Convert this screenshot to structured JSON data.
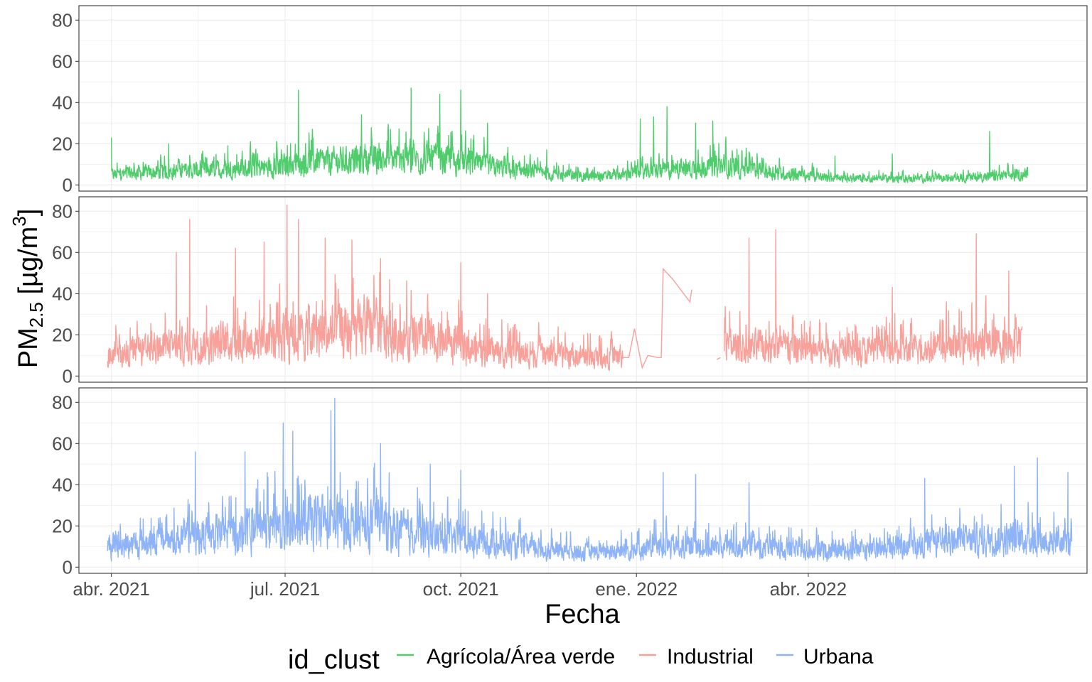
{
  "chart_data": {
    "type": "line",
    "xlabel": "Fecha",
    "ylabel": "PM",
    "ylabel_sub": "2.5",
    "ylabel_unit_open": " [µg/m",
    "ylabel_unit_sup": "3",
    "ylabel_unit_close": "]",
    "x_range": [
      "2021-03-15",
      "2022-08-25"
    ],
    "x_ticks": [
      {
        "date": "2021-04-01",
        "label": "abr. 2021"
      },
      {
        "date": "2021-07-01",
        "label": "jul. 2021"
      },
      {
        "date": "2021-10-01",
        "label": "oct. 2021"
      },
      {
        "date": "2022-01-01",
        "label": "ene. 2022"
      },
      {
        "date": "2022-04-01",
        "label": "abr. 2022"
      }
    ],
    "ylim": [
      -3,
      87
    ],
    "y_ticks": [
      0,
      20,
      40,
      60,
      80
    ],
    "grid": true,
    "facets": "stacked vertically, shared x axis",
    "legend": {
      "title": "id_clust",
      "position": "bottom",
      "entries": [
        "Agrícola/Área verde",
        "Industrial",
        "Urbana"
      ]
    },
    "series": [
      {
        "name": "Agrícola/Área verde",
        "color": "#4fcd6d",
        "start": "2021-04-01",
        "end": "2022-07-25",
        "base_level": [
          [
            "2021-04-01",
            5
          ],
          [
            "2021-05-15",
            7
          ],
          [
            "2021-06-15",
            8
          ],
          [
            "2021-07-15",
            11
          ],
          [
            "2021-08-15",
            12
          ],
          [
            "2021-09-15",
            13
          ],
          [
            "2021-10-15",
            9
          ],
          [
            "2021-11-15",
            5
          ],
          [
            "2021-12-15",
            4
          ],
          [
            "2022-01-15",
            7
          ],
          [
            "2022-02-15",
            9
          ],
          [
            "2022-03-15",
            6
          ],
          [
            "2022-04-15",
            3
          ],
          [
            "2022-05-15",
            3
          ],
          [
            "2022-06-15",
            3
          ],
          [
            "2022-07-25",
            5
          ]
        ],
        "peaks": [
          [
            "2021-04-01",
            23
          ],
          [
            "2021-05-01",
            20
          ],
          [
            "2021-06-01",
            19
          ],
          [
            "2021-07-08",
            46
          ],
          [
            "2021-08-10",
            34
          ],
          [
            "2021-09-05",
            47
          ],
          [
            "2021-09-20",
            44
          ],
          [
            "2021-10-01",
            46
          ],
          [
            "2021-10-15",
            30
          ],
          [
            "2021-11-15",
            17
          ],
          [
            "2022-01-03",
            32
          ],
          [
            "2022-01-10",
            33
          ],
          [
            "2022-01-17",
            38
          ],
          [
            "2022-02-01",
            30
          ],
          [
            "2022-02-10",
            31
          ],
          [
            "2022-03-01",
            16
          ],
          [
            "2022-04-15",
            14
          ],
          [
            "2022-05-15",
            15
          ],
          [
            "2022-07-05",
            26
          ]
        ]
      },
      {
        "name": "Industrial",
        "color": "#f8a09a",
        "start": "2021-03-30",
        "end": "2022-07-22",
        "base_level": [
          [
            "2021-04-01",
            10
          ],
          [
            "2021-05-15",
            15
          ],
          [
            "2021-06-15",
            17
          ],
          [
            "2021-07-15",
            20
          ],
          [
            "2021-08-15",
            22
          ],
          [
            "2021-09-15",
            17
          ],
          [
            "2021-10-15",
            12
          ],
          [
            "2021-11-15",
            10
          ],
          [
            "2021-12-15",
            9
          ],
          [
            "2022-02-15",
            14
          ],
          [
            "2022-03-15",
            14
          ],
          [
            "2022-04-15",
            12
          ],
          [
            "2022-05-15",
            12
          ],
          [
            "2022-06-15",
            14
          ],
          [
            "2022-07-20",
            16
          ]
        ],
        "peaks": [
          [
            "2021-05-12",
            76
          ],
          [
            "2021-05-05",
            60
          ],
          [
            "2021-06-05",
            62
          ],
          [
            "2021-06-20",
            65
          ],
          [
            "2021-07-02",
            83
          ],
          [
            "2021-07-08",
            76
          ],
          [
            "2021-07-22",
            67
          ],
          [
            "2021-08-05",
            66
          ],
          [
            "2021-08-20",
            57
          ],
          [
            "2021-10-01",
            55
          ],
          [
            "2021-10-15",
            40
          ],
          [
            "2022-03-15",
            71
          ],
          [
            "2022-03-01",
            67
          ],
          [
            "2022-06-28",
            69
          ],
          [
            "2022-07-15",
            51
          ],
          [
            "2022-02-01",
            52
          ],
          [
            "2022-05-15",
            43
          ]
        ],
        "gaps": [
          {
            "from": "2021-12-25",
            "to": "2022-02-15",
            "points": [
              [
                "2021-12-25",
                9
              ],
              [
                "2021-12-28",
                9
              ],
              [
                "2021-12-31",
                23
              ],
              [
                "2022-01-04",
                4
              ],
              [
                "2022-01-07",
                10
              ],
              [
                "2022-01-12",
                9
              ],
              [
                "2022-01-14",
                9
              ],
              [
                "2022-01-15",
                52
              ],
              [
                "2022-01-20",
                47
              ],
              [
                "2022-01-29",
                36
              ],
              [
                "2022-01-30",
                42
              ]
            ]
          },
          {
            "from": "2022-02-12",
            "to": "2022-02-16",
            "points": [
              [
                "2022-02-12",
                8
              ],
              [
                "2022-02-14",
                9
              ]
            ]
          }
        ]
      },
      {
        "name": "Urbana",
        "color": "#8eb3f7",
        "start": "2021-03-30",
        "end": "2022-08-17",
        "base_level": [
          [
            "2021-04-01",
            10
          ],
          [
            "2021-05-15",
            15
          ],
          [
            "2021-06-15",
            17
          ],
          [
            "2021-07-15",
            22
          ],
          [
            "2021-08-15",
            20
          ],
          [
            "2021-09-15",
            15
          ],
          [
            "2021-10-15",
            12
          ],
          [
            "2021-11-15",
            8
          ],
          [
            "2021-12-15",
            7
          ],
          [
            "2022-01-15",
            10
          ],
          [
            "2022-02-15",
            10
          ],
          [
            "2022-03-15",
            9
          ],
          [
            "2022-04-15",
            8
          ],
          [
            "2022-05-15",
            9
          ],
          [
            "2022-06-15",
            12
          ],
          [
            "2022-07-15",
            14
          ],
          [
            "2022-08-15",
            12
          ]
        ],
        "peaks": [
          [
            "2021-05-15",
            56
          ],
          [
            "2021-06-10",
            56
          ],
          [
            "2021-06-30",
            70
          ],
          [
            "2021-07-05",
            66
          ],
          [
            "2021-07-25",
            76
          ],
          [
            "2021-07-27",
            82
          ],
          [
            "2021-08-20",
            60
          ],
          [
            "2021-09-15",
            50
          ],
          [
            "2021-10-01",
            47
          ],
          [
            "2022-01-15",
            46
          ],
          [
            "2022-02-01",
            45
          ],
          [
            "2022-03-01",
            41
          ],
          [
            "2022-07-18",
            49
          ],
          [
            "2022-07-30",
            53
          ],
          [
            "2022-08-15",
            46
          ],
          [
            "2022-06-01",
            43
          ]
        ]
      }
    ]
  }
}
